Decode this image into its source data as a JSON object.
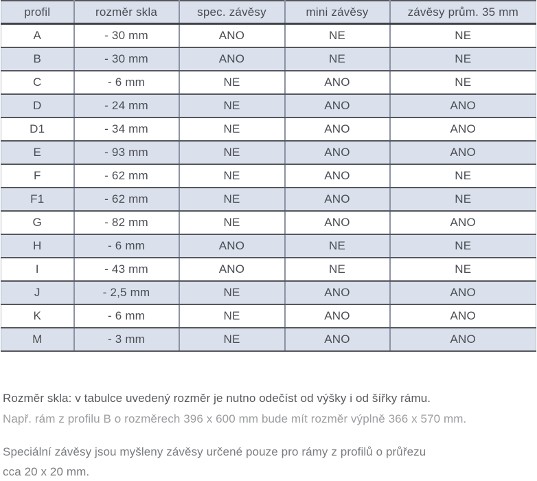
{
  "table": {
    "columns": [
      "profil",
      "rozměr skla",
      "spec. závěsy",
      "mini závěsy",
      "závěsy prům. 35 mm"
    ],
    "rows": [
      {
        "cells": [
          "A",
          "- 30 mm",
          "ANO",
          "NE",
          "NE"
        ]
      },
      {
        "cells": [
          "B",
          "- 30 mm",
          "ANO",
          "NE",
          "NE"
        ]
      },
      {
        "cells": [
          "C",
          "- 6 mm",
          "NE",
          "ANO",
          "NE"
        ]
      },
      {
        "cells": [
          "D",
          "- 24 mm",
          "NE",
          "ANO",
          "ANO"
        ]
      },
      {
        "cells": [
          "D1",
          "- 34 mm",
          "NE",
          "ANO",
          "ANO"
        ]
      },
      {
        "cells": [
          "E",
          "- 93 mm",
          "NE",
          "ANO",
          "ANO"
        ]
      },
      {
        "cells": [
          "F",
          "- 62 mm",
          "NE",
          "ANO",
          "NE"
        ]
      },
      {
        "cells": [
          "F1",
          "- 62 mm",
          "NE",
          "ANO",
          "NE"
        ]
      },
      {
        "cells": [
          "G",
          "- 82 mm",
          "NE",
          "ANO",
          "ANO"
        ]
      },
      {
        "cells": [
          "H",
          "- 6 mm",
          "ANO",
          "NE",
          "NE"
        ]
      },
      {
        "cells": [
          "I",
          "- 43 mm",
          "ANO",
          "NE",
          "NE"
        ]
      },
      {
        "cells": [
          "J",
          "- 2,5 mm",
          "NE",
          "ANO",
          "ANO"
        ]
      },
      {
        "cells": [
          "K",
          "- 6 mm",
          "NE",
          "ANO",
          "ANO"
        ]
      },
      {
        "cells": [
          "M",
          "- 3 mm",
          "NE",
          "ANO",
          "ANO"
        ]
      }
    ]
  },
  "notes": {
    "glass_note_line1": "Rozměr skla: v tabulce uvedený rozměr je nutno odečíst od výšky i od šířky rámu.",
    "glass_note_line2": "Např. rám z profilu B o rozměrech 396 x 600 mm bude mít rozměr výplně 366 x 570 mm.",
    "special_note_line1": "Speciální závěsy jsou myšleny závěsy určené pouze pro rámy z profilů o průřezu",
    "special_note_line2": "cca 20 x 20 mm."
  },
  "colors": {
    "row_highlight": "#dae0ec",
    "row_plain": "#ffffff",
    "horizontal_border": "#55575c",
    "header_bottom_border": "#404247",
    "vertical_border": "#8b93a3",
    "table_text": "#4a4d52",
    "note_primary_text": "#56595d",
    "note_faded_text": "#9b9da0",
    "note_secondary_text": "#7a7d81"
  }
}
